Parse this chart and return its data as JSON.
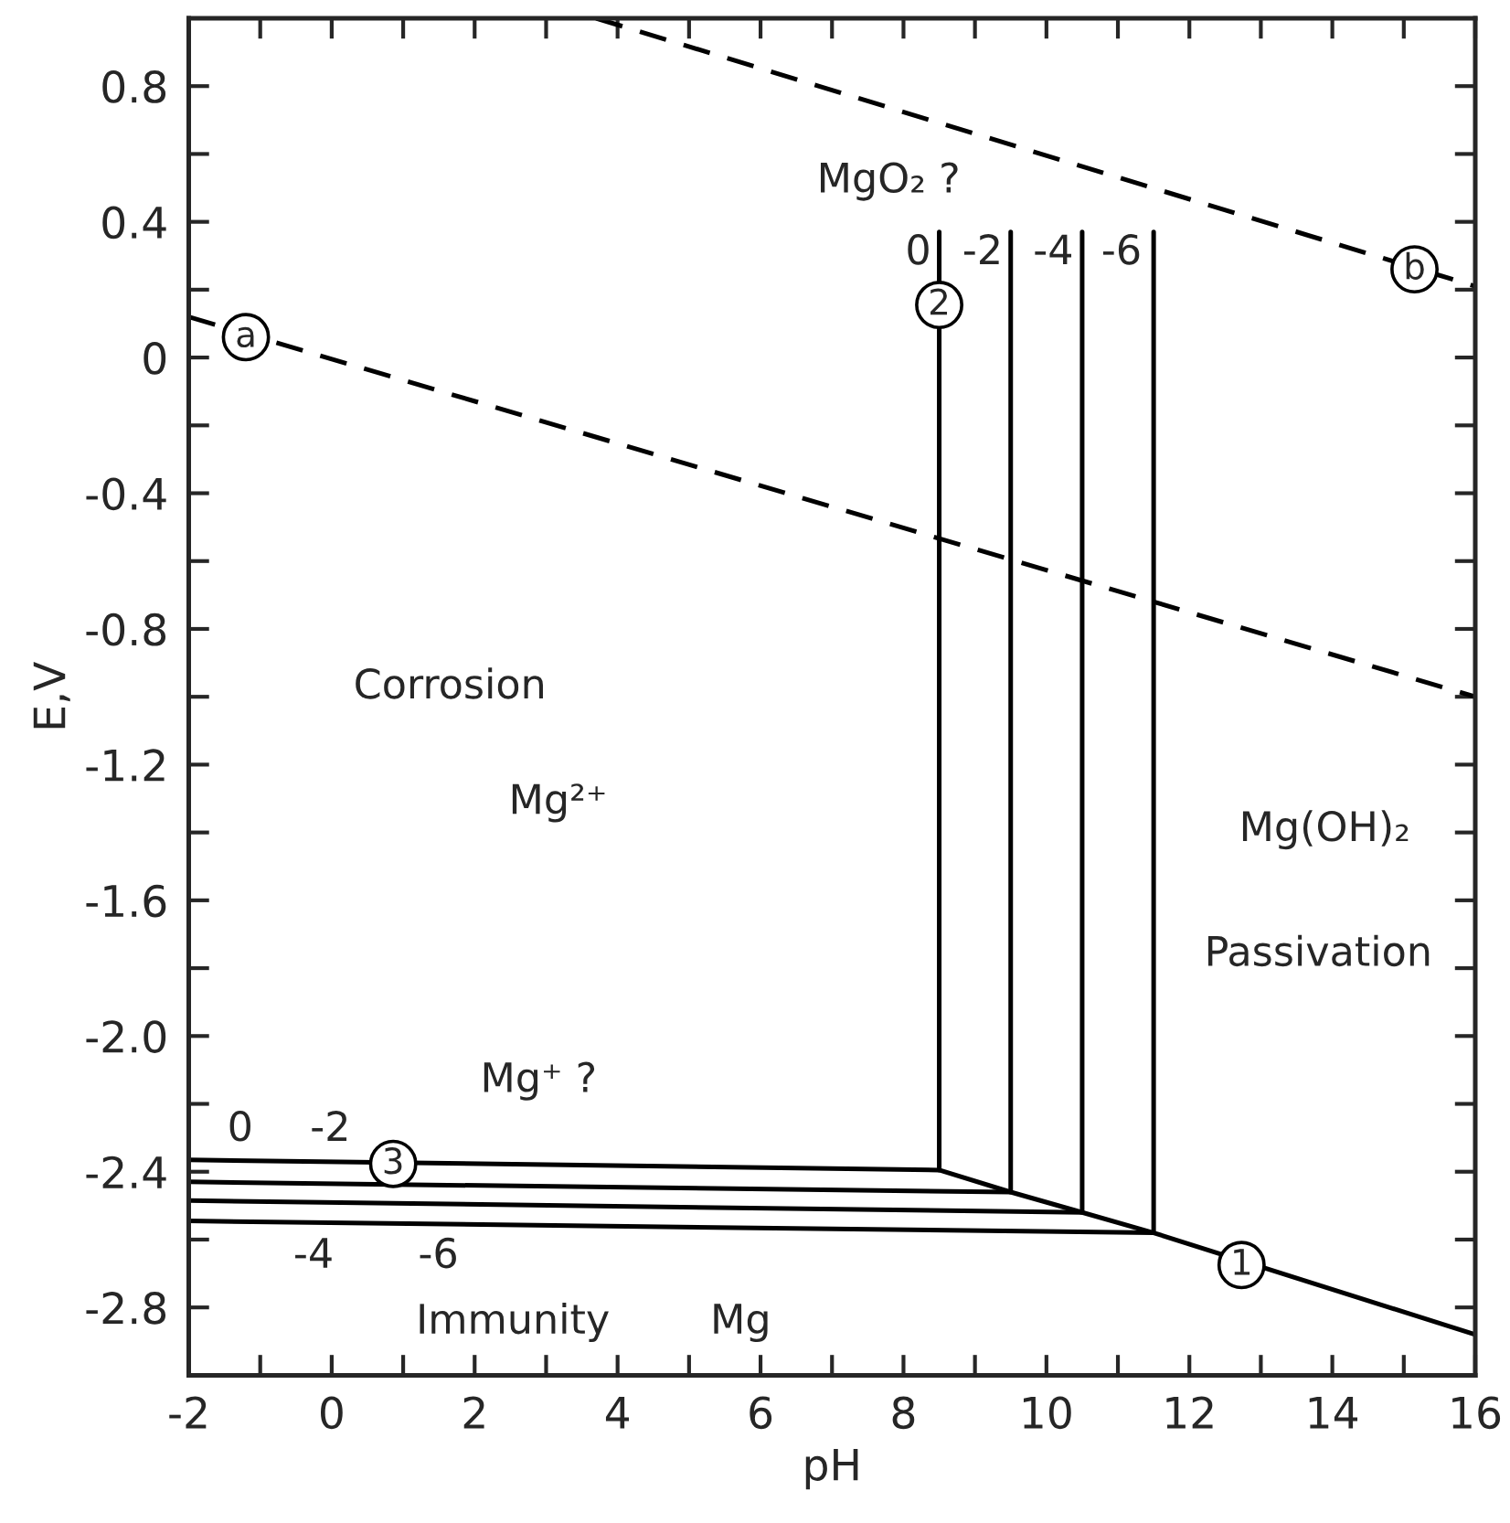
{
  "chart_data": {
    "type": "line",
    "xlabel": "pH",
    "ylabel": "E,V",
    "xlim": [
      -2,
      16
    ],
    "ylim": [
      -3.0,
      1.0
    ],
    "xticks": [
      -2,
      {
        "value": -1,
        "label": null
      },
      0,
      {
        "value": 1,
        "label": null
      },
      2,
      {
        "value": 3,
        "label": null
      },
      4,
      {
        "value": 5,
        "label": null
      },
      6,
      {
        "value": 7,
        "label": null
      },
      8,
      {
        "value": 9,
        "label": null
      },
      10,
      {
        "value": 11,
        "label": null
      },
      12,
      {
        "value": 13,
        "label": null
      },
      14,
      {
        "value": 15,
        "label": null
      },
      16
    ],
    "yticks": [
      -2.8,
      {
        "value": -2.6,
        "label": null
      },
      -2.4,
      {
        "value": -2.2,
        "label": null
      },
      {
        "value": -2.0,
        "label": "-2.0"
      },
      {
        "value": -1.8,
        "label": null
      },
      -1.6,
      {
        "value": -1.4,
        "label": null
      },
      -1.2,
      {
        "value": -1.0,
        "label": null
      },
      -0.8,
      {
        "value": -0.6,
        "label": null
      },
      -0.4,
      {
        "value": -0.2,
        "label": null
      },
      0,
      {
        "value": 0.2,
        "label": null
      },
      0.4,
      {
        "value": 0.6,
        "label": null
      },
      0.8
    ],
    "grid": false,
    "legend": false,
    "marker": "none",
    "series": [
      {
        "color": "#000000",
        "line_style": "dashed",
        "x": [
          -2,
          16
        ],
        "values": [
          0.12,
          -1.0
        ]
      },
      {
        "color": "#000000",
        "line_style": "dashed",
        "x": [
          3.7,
          16
        ],
        "values": [
          1.0,
          0.21
        ]
      },
      {
        "color": "#000000",
        "line_style": "solid",
        "x": [
          -2,
          8.5,
          9.5,
          10.5,
          11.5,
          16
        ],
        "values": [
          -2.365,
          -2.395,
          -2.46,
          -2.52,
          -2.58,
          -2.88
        ]
      },
      {
        "color": "#000000",
        "line_style": "solid",
        "x": [
          8.5,
          8.5
        ],
        "values": [
          0.37,
          -2.395
        ]
      },
      {
        "color": "#000000",
        "line_style": "solid",
        "x": [
          -2,
          9.5,
          9.5
        ],
        "values": [
          -2.43,
          -2.46,
          0.37
        ]
      },
      {
        "color": "#000000",
        "line_style": "solid",
        "x": [
          -2,
          10.5,
          10.5
        ],
        "values": [
          -2.485,
          -2.52,
          0.37
        ]
      },
      {
        "color": "#000000",
        "line_style": "solid",
        "x": [
          -2,
          11.5,
          11.5
        ],
        "values": [
          -2.545,
          -2.58,
          0.37
        ]
      }
    ],
    "annotations": [
      {
        "text": "a",
        "x": -1.2,
        "y": 0.06
      },
      {
        "text": "b",
        "x": 15.15,
        "y": 0.26
      },
      "MgO₂ ?",
      "0",
      "-2",
      "-4",
      "-6",
      {
        "text": "2",
        "x": 8.5,
        "y": 0.155
      },
      "Corrosion",
      "Mg²⁺",
      "Mg(OH)₂",
      "Passivation",
      "Mg⁺ ?",
      "0",
      "-2",
      {
        "text": "3",
        "x": 0.86,
        "y": -2.377
      },
      "-4",
      "-6",
      {
        "text": "1",
        "x": 12.73,
        "y": -2.675
      },
      "Immunity",
      "Mg"
    ]
  }
}
